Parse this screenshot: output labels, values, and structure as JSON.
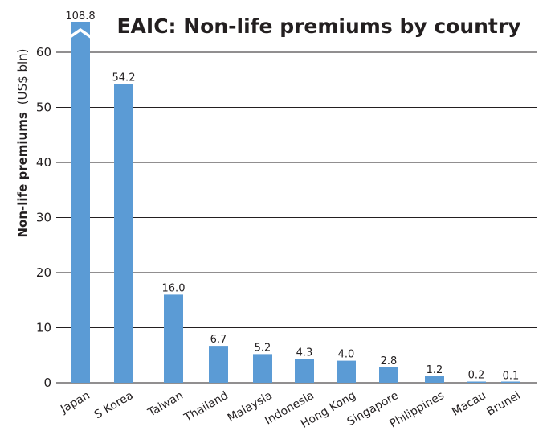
{
  "chart_data": {
    "type": "bar",
    "title": "EAIC: Non-life premiums by country",
    "ylabel_bold": "Non-life premiums",
    "ylabel_unit": "(US$ bln)",
    "categories": [
      "Japan",
      "S Korea",
      "Taiwan",
      "Thailand",
      "Malaysia",
      "Indonesia",
      "Hong Kong",
      "Singapore",
      "Philippines",
      "Macau",
      "Brunei"
    ],
    "values": [
      108.8,
      54.2,
      16.0,
      6.7,
      5.2,
      4.3,
      4.0,
      2.8,
      1.2,
      0.2,
      0.1
    ],
    "value_labels": [
      "108.8",
      "54.2",
      "16.0",
      "6.7",
      "5.2",
      "4.3",
      "4.0",
      "2.8",
      "1.2",
      "0.2",
      "0.1"
    ],
    "yticks": [
      0,
      10,
      20,
      30,
      40,
      50,
      60
    ],
    "ylim": [
      0,
      60
    ],
    "axis_break_on": "Japan",
    "grid": true,
    "bar_color": "#5b9bd5"
  }
}
